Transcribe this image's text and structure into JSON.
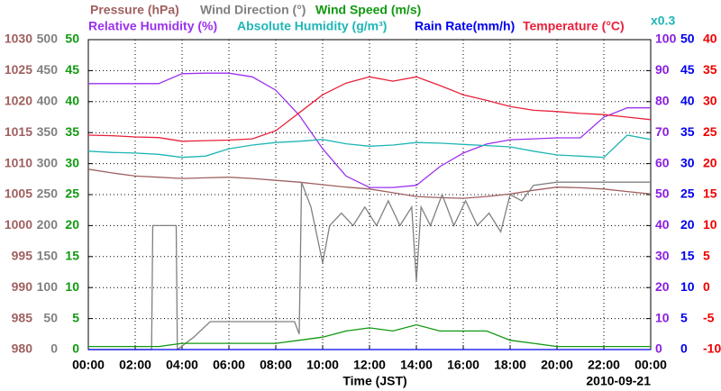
{
  "chart_data": {
    "type": "line",
    "x_label": "Time (JST)",
    "date": "2010-09-21",
    "scale_note": "x0.3",
    "grid": true,
    "xlim": [
      0,
      24
    ],
    "xticks": [
      {
        "value": 0,
        "label": "00:00"
      },
      {
        "value": 2,
        "label": "02:00"
      },
      {
        "value": 4,
        "label": "04:00"
      },
      {
        "value": 6,
        "label": "06:00"
      },
      {
        "value": 8,
        "label": "08:00"
      },
      {
        "value": 10,
        "label": "10:00"
      },
      {
        "value": 12,
        "label": "12:00"
      },
      {
        "value": 14,
        "label": "14:00"
      },
      {
        "value": 16,
        "label": "16:00"
      },
      {
        "value": 18,
        "label": "18:00"
      },
      {
        "value": 20,
        "label": "20:00"
      },
      {
        "value": 22,
        "label": "22:00"
      },
      {
        "value": 24,
        "label": "00:00"
      }
    ],
    "axes": [
      {
        "side": "left",
        "color": "#a06060",
        "ylim": [
          980,
          1030
        ],
        "yticks": [
          980,
          985,
          990,
          995,
          1000,
          1005,
          1010,
          1015,
          1020,
          1025,
          1030
        ]
      },
      {
        "side": "left",
        "color": "#808080",
        "ylim": [
          0,
          500
        ],
        "yticks": [
          0,
          50,
          100,
          150,
          200,
          250,
          300,
          350,
          400,
          450,
          500
        ]
      },
      {
        "side": "left",
        "color": "#119911",
        "ylim": [
          0,
          50
        ],
        "yticks": [
          0,
          5,
          10,
          15,
          20,
          25,
          30,
          35,
          40,
          45,
          50
        ]
      },
      {
        "side": "right",
        "color": "#8a1ee0",
        "ylim": [
          0,
          100
        ],
        "yticks": [
          0,
          10,
          20,
          30,
          40,
          50,
          60,
          70,
          80,
          90,
          100
        ]
      },
      {
        "side": "right",
        "color": "#0000ee",
        "ylim": [
          0,
          50
        ],
        "yticks": [
          0,
          5,
          10,
          15,
          20,
          25,
          30,
          35,
          40,
          45,
          50
        ]
      },
      {
        "side": "right",
        "color": "#ee0000",
        "ylim": [
          -10,
          40
        ],
        "yticks": [
          -10,
          -5,
          0,
          5,
          10,
          15,
          20,
          25,
          30,
          35,
          40
        ]
      }
    ],
    "x": [
      0,
      1,
      2,
      3,
      4,
      5,
      6,
      7,
      8,
      9,
      10,
      11,
      12,
      13,
      14,
      15,
      16,
      17,
      18,
      19,
      20,
      21,
      22,
      23,
      24
    ],
    "series": [
      {
        "name": "Pressure (hPa)",
        "color": "#a06060",
        "axis": 0,
        "values": [
          1009.1,
          1008.5,
          1008.0,
          1007.8,
          1007.6,
          1007.7,
          1007.8,
          1007.6,
          1007.3,
          1007.0,
          1006.6,
          1006.2,
          1005.9,
          1005.3,
          1004.7,
          1004.5,
          1004.4,
          1004.7,
          1005.1,
          1005.7,
          1006.2,
          1006.1,
          1005.9,
          1005.5,
          1005.1
        ]
      },
      {
        "name": "Wind Direction (°)",
        "color": "#808080",
        "axis": 1,
        "x": [
          0,
          2.7,
          2.75,
          3.75,
          3.8,
          4.5,
          5.2,
          8.8,
          9.0,
          9.1,
          9.5,
          10.0,
          10.3,
          10.8,
          11.3,
          11.8,
          12.3,
          12.8,
          13.3,
          13.8,
          14.0,
          14.2,
          14.6,
          15.1,
          15.6,
          16.1,
          16.6,
          17.1,
          17.6,
          18.0,
          18.5,
          19.0,
          20.0,
          22.0,
          24.0
        ],
        "values": [
          0,
          0,
          200,
          200,
          0,
          20,
          45,
          45,
          25,
          270,
          230,
          140,
          200,
          220,
          200,
          230,
          200,
          240,
          200,
          230,
          110,
          230,
          200,
          250,
          200,
          240,
          200,
          220,
          190,
          250,
          240,
          265,
          270,
          270,
          270
        ]
      },
      {
        "name": "Wind Speed (m/s)",
        "color": "#119911",
        "axis": 2,
        "values": [
          0.5,
          0.5,
          0.5,
          0.5,
          1,
          1,
          1,
          1,
          1,
          1.5,
          2,
          3,
          3.5,
          3,
          4,
          3,
          3,
          3,
          1.5,
          1,
          0.5,
          0.5,
          0.5,
          0.5,
          0.5
        ]
      },
      {
        "name": "Relative Humidity (%)",
        "color": "#9b30ee",
        "axis": 3,
        "values": [
          85.8,
          85.8,
          85.8,
          85.8,
          89.0,
          89.2,
          89.2,
          88.0,
          83.7,
          75.6,
          64.8,
          56.0,
          52.3,
          52.3,
          53.0,
          59.0,
          63.4,
          66.3,
          67.7,
          68.0,
          68.3,
          68.3,
          75.0,
          78.0,
          78.0
        ]
      },
      {
        "name": "Absolute Humidity (g/m³)",
        "color": "#1fb5b5",
        "axis": 4,
        "values": [
          32.0,
          31.8,
          31.7,
          31.5,
          31.0,
          31.2,
          32.4,
          33.0,
          33.4,
          33.6,
          33.9,
          33.2,
          32.8,
          33.0,
          33.4,
          33.3,
          33.1,
          32.9,
          32.7,
          32.0,
          31.4,
          31.2,
          31.0,
          34.6,
          33.9
        ]
      },
      {
        "name": "Rain Rate(mm/h)",
        "color": "#0000ee",
        "axis": 4,
        "values": [
          0,
          0,
          0,
          0,
          0,
          0,
          0,
          0,
          0,
          0,
          0,
          0,
          0,
          0,
          0,
          0,
          0,
          0,
          0,
          0,
          0,
          0,
          0,
          0,
          0
        ]
      },
      {
        "name": "Temperature (°C)",
        "color": "#e8203a",
        "axis": 5,
        "values": [
          24.6,
          24.5,
          24.3,
          24.2,
          23.6,
          23.7,
          23.8,
          24.0,
          25.3,
          28.2,
          31.1,
          33.0,
          34.0,
          33.3,
          34.0,
          32.6,
          31.1,
          30.2,
          29.2,
          28.6,
          28.4,
          28.1,
          27.9,
          27.5,
          27.1
        ]
      }
    ]
  }
}
